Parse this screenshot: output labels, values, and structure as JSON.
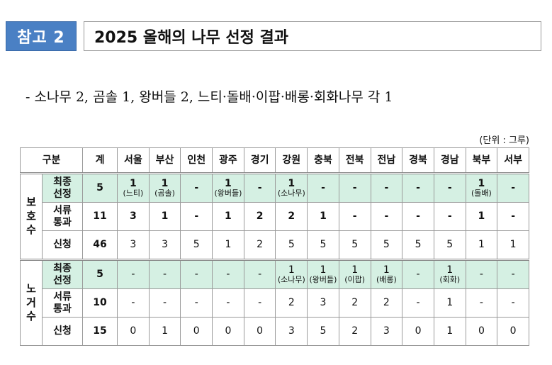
{
  "header": {
    "badge": "참고 2",
    "title": "2025 올해의 나무 선정 결과"
  },
  "summary": "- 소나무 2, 곰솔 1, 왕버들 2, 느티·돌배·이팝·배롱·회화나무 각 1",
  "unit": "(단위 : 그루)",
  "colors": {
    "badge": "#4a80c4",
    "highlight_row": "#d5f0e3"
  },
  "table": {
    "columns": [
      "구분",
      "계",
      "서울",
      "부산",
      "인천",
      "광주",
      "경기",
      "강원",
      "충북",
      "전북",
      "전남",
      "경북",
      "경남",
      "북부",
      "서부"
    ],
    "groups": [
      {
        "name": "보호수",
        "rows": [
          {
            "label": "최종선정",
            "highlight": true,
            "bold": true,
            "total": "5",
            "cells": [
              {
                "v": "1",
                "note": "(느티)"
              },
              {
                "v": "1",
                "note": "(곰솔)"
              },
              {
                "v": "-"
              },
              {
                "v": "1",
                "note": "(왕버들)"
              },
              {
                "v": "-"
              },
              {
                "v": "1",
                "note": "(소나무)"
              },
              {
                "v": "-"
              },
              {
                "v": "-"
              },
              {
                "v": "-"
              },
              {
                "v": "-"
              },
              {
                "v": "-"
              },
              {
                "v": "1",
                "note": "(돌배)"
              },
              {
                "v": "-"
              }
            ]
          },
          {
            "label": "서류통과",
            "highlight": false,
            "bold": true,
            "total": "11",
            "cells": [
              {
                "v": "3"
              },
              {
                "v": "1"
              },
              {
                "v": "-"
              },
              {
                "v": "1"
              },
              {
                "v": "2"
              },
              {
                "v": "2"
              },
              {
                "v": "1"
              },
              {
                "v": "-"
              },
              {
                "v": "-"
              },
              {
                "v": "-"
              },
              {
                "v": "-"
              },
              {
                "v": "1"
              },
              {
                "v": "-"
              }
            ]
          },
          {
            "label": "신청",
            "highlight": false,
            "bold": false,
            "total": "46",
            "cells": [
              {
                "v": "3"
              },
              {
                "v": "3"
              },
              {
                "v": "5"
              },
              {
                "v": "1"
              },
              {
                "v": "2"
              },
              {
                "v": "5"
              },
              {
                "v": "5"
              },
              {
                "v": "5"
              },
              {
                "v": "5"
              },
              {
                "v": "5"
              },
              {
                "v": "5"
              },
              {
                "v": "1"
              },
              {
                "v": "1"
              }
            ]
          }
        ]
      },
      {
        "name": "노거수",
        "rows": [
          {
            "label": "최종선정",
            "highlight": true,
            "bold": false,
            "total": "5",
            "cells": [
              {
                "v": "-"
              },
              {
                "v": "-"
              },
              {
                "v": "-"
              },
              {
                "v": "-"
              },
              {
                "v": "-"
              },
              {
                "v": "1",
                "note": "(소나무)"
              },
              {
                "v": "1",
                "note": "(왕버들)"
              },
              {
                "v": "1",
                "note": "(이팝)"
              },
              {
                "v": "1",
                "note": "(배롱)"
              },
              {
                "v": "-"
              },
              {
                "v": "1",
                "note": "(회화)"
              },
              {
                "v": "-"
              },
              {
                "v": "-"
              }
            ]
          },
          {
            "label": "서류통과",
            "highlight": false,
            "bold": false,
            "total": "10",
            "cells": [
              {
                "v": "-"
              },
              {
                "v": "-"
              },
              {
                "v": "-"
              },
              {
                "v": "-"
              },
              {
                "v": "-"
              },
              {
                "v": "2"
              },
              {
                "v": "3"
              },
              {
                "v": "2"
              },
              {
                "v": "2"
              },
              {
                "v": "-"
              },
              {
                "v": "1"
              },
              {
                "v": "-"
              },
              {
                "v": "-"
              }
            ]
          },
          {
            "label": "신청",
            "highlight": false,
            "bold": false,
            "total": "15",
            "cells": [
              {
                "v": "0"
              },
              {
                "v": "1"
              },
              {
                "v": "0"
              },
              {
                "v": "0"
              },
              {
                "v": "0"
              },
              {
                "v": "3"
              },
              {
                "v": "5"
              },
              {
                "v": "2"
              },
              {
                "v": "3"
              },
              {
                "v": "0"
              },
              {
                "v": "1"
              },
              {
                "v": "0"
              },
              {
                "v": "0"
              }
            ]
          }
        ]
      }
    ]
  }
}
